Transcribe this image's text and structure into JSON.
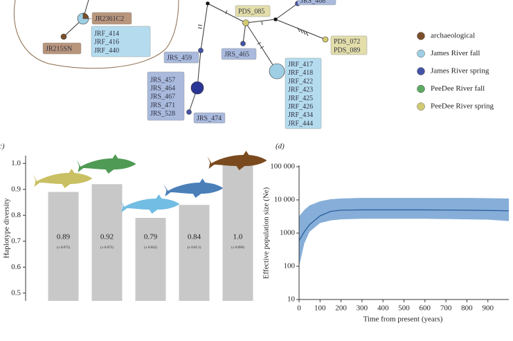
{
  "network": {
    "boxes": [
      {
        "lines": [
          "JR2361C2"
        ],
        "color": "#b8957b"
      },
      {
        "lines": [
          "JRF_414",
          "JRF_416",
          "JRF_440"
        ],
        "color": "#b4dcee"
      },
      {
        "lines": [
          "JR215SN"
        ],
        "color": "#b8957b"
      },
      {
        "lines": [
          "PDS_085"
        ],
        "color": "#e3deaa"
      },
      {
        "lines": [
          "JRS_468"
        ],
        "color": "#a9badd"
      },
      {
        "lines": [
          "PDS_072",
          "PDS_089"
        ],
        "color": "#e3deaa"
      },
      {
        "lines": [
          "JRS_465"
        ],
        "color": "#a9badd"
      },
      {
        "lines": [
          "JRS_459"
        ],
        "color": "#a9badd"
      },
      {
        "lines": [
          "JRS_457",
          "JRS_464",
          "JRS_467",
          "JRS_471",
          "JRS_528"
        ],
        "color": "#a9badd"
      },
      {
        "lines": [
          "JRS_474"
        ],
        "color": "#a9badd"
      },
      {
        "lines": [
          "JRF_417",
          "JRF_418",
          "JRF_422",
          "JRF_423",
          "JRF_425",
          "JRF_426",
          "JRF_434",
          "JRF_444"
        ],
        "color": "#b4dcee"
      }
    ]
  },
  "legend": {
    "items": [
      {
        "name": "archaeological",
        "color": "#7a4f2a"
      },
      {
        "name": "James River fall",
        "color": "#9fcfe4"
      },
      {
        "name": "James River spring",
        "color": "#4353a8"
      },
      {
        "name": "PeeDee River fall",
        "color": "#5daa62"
      },
      {
        "name": "PeeDee River spring",
        "color": "#d2ca72"
      }
    ]
  },
  "chart_data": [
    {
      "type": "bar",
      "panel_label": "c)",
      "ylabel": "Haplotype diversity",
      "categories": [
        null,
        null,
        null,
        null,
        null
      ],
      "values": [
        0.89,
        0.92,
        0.79,
        0.84,
        1.0
      ],
      "value_labels": [
        "0.89",
        "0.92",
        "0.79",
        "0.84",
        "1.0"
      ],
      "value_notes": [
        "(± 0.075)",
        "(± 0.075)",
        "(± 0.042)",
        "(± 0.05 1)",
        "(± 0.096)"
      ],
      "icon_colors": [
        "#c9c063",
        "#4f9a55",
        "#72bde3",
        "#4a7fb8",
        "#7a4a1e"
      ],
      "color": "#c8c8c8",
      "ylim": [
        0.47,
        1.03
      ],
      "yticks": [
        0.5,
        0.6,
        0.7,
        0.8,
        0.9,
        {
          "value": 1,
          "label": "1.0"
        }
      ]
    },
    {
      "type": "line",
      "panel_label": "(d)",
      "xlabel": "Time from present (years)",
      "ylabel": "Effective population size (Ne)",
      "log_y": true,
      "x": [
        0,
        25,
        50,
        100,
        150,
        200,
        300,
        400,
        500,
        600,
        700,
        800,
        900,
        1000
      ],
      "values": [
        590,
        1100,
        1800,
        3300,
        4500,
        4900,
        5000,
        5000,
        5000,
        5000,
        4950,
        4900,
        4800,
        4700
      ],
      "lower": [
        100,
        490,
        1100,
        2000,
        2400,
        2600,
        2700,
        2700,
        2700,
        2700,
        2650,
        2600,
        2550,
        2300
      ],
      "upper": [
        3200,
        5000,
        6800,
        9100,
        10500,
        11000,
        11500,
        11500,
        11500,
        11500,
        11500,
        11500,
        11300,
        11000
      ],
      "color": "#2b5f9e",
      "band_color": "#86aed8",
      "xlim": [
        0,
        1000
      ],
      "xticks": [
        0,
        100,
        200,
        300,
        400,
        500,
        600,
        700,
        800,
        900
      ],
      "ylim": [
        10,
        100000
      ],
      "yticks": [
        10,
        100,
        1000,
        {
          "value": 10000,
          "label": "10 000"
        },
        {
          "value": 100000,
          "label": "100 000"
        }
      ]
    }
  ]
}
